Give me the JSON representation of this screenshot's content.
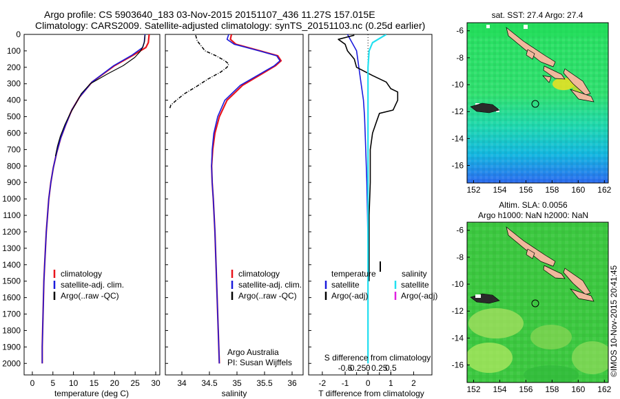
{
  "header": {
    "line1": "Argo profile: CS 5903640_183 03-Nov-2015 20151107_436 11.27S 157.015E",
    "line2": "Climatology: CARS2009. Satellite-adjusted climatology: synTS_20151103.nc (0.25d earlier)"
  },
  "colors": {
    "climatology": "#e8141c",
    "satellite": "#1a1adc",
    "argo": "#000000",
    "sat_salinity": "#22e0f0",
    "argo_adj_salinity": "#e020e0"
  },
  "footer": {
    "stamp": "©IMOS 10-Nov-2015 20:41:45"
  },
  "chart_data": [
    {
      "type": "line",
      "id": "temperature",
      "xlabel": "temperature (deg C)",
      "ylabel": "",
      "xlim": [
        -2,
        31
      ],
      "ylim": [
        2070,
        0
      ],
      "xticks": [
        "0",
        "5",
        "10",
        "15",
        "20",
        "25",
        "30"
      ],
      "yticks": [
        "0",
        "100",
        "200",
        "300",
        "400",
        "500",
        "600",
        "700",
        "800",
        "900",
        "1000",
        "1100",
        "1200",
        "1300",
        "1400",
        "1500",
        "1600",
        "1700",
        "1800",
        "1900",
        "2000"
      ],
      "legend": [
        "climatology",
        "satellite-adj. clim.",
        "Argo(..raw -QC)"
      ],
      "series": [
        {
          "name": "climatology",
          "color_key": "climatology",
          "width": 2.2,
          "x": [
            28.4,
            28.2,
            27.6,
            24.6,
            20.0,
            14.5,
            11.5,
            9.6,
            8.1,
            6.9,
            5.9,
            5.1,
            4.5,
            4.0,
            3.7,
            3.4,
            3.2,
            3.0,
            2.8,
            2.7,
            2.6,
            2.5,
            2.4,
            2.4
          ],
          "y": [
            0,
            50,
            80,
            125,
            190,
            290,
            380,
            460,
            550,
            630,
            720,
            810,
            900,
            1000,
            1100,
            1200,
            1300,
            1400,
            1500,
            1600,
            1700,
            1800,
            1900,
            2000
          ]
        },
        {
          "name": "satellite-adj. clim.",
          "color_key": "satellite",
          "width": 1.6,
          "x": [
            27.4,
            27.2,
            26.8,
            24.3,
            19.8,
            14.5,
            11.5,
            9.6,
            8.1,
            6.9,
            5.9,
            5.1,
            4.5,
            4.0,
            3.7,
            3.4,
            3.2,
            3.0,
            2.8,
            2.7,
            2.6,
            2.5,
            2.4,
            2.4
          ],
          "y": [
            0,
            50,
            80,
            125,
            190,
            290,
            380,
            460,
            550,
            630,
            720,
            810,
            900,
            1000,
            1100,
            1200,
            1300,
            1400,
            1500,
            1600,
            1700,
            1800,
            1900,
            2000
          ]
        },
        {
          "name": "Argo(..raw -QC)",
          "color_key": "argo",
          "width": 1.2,
          "x": [
            27.4,
            27.3,
            26.9,
            26.2,
            24.9,
            22.1,
            18.3,
            14.1,
            11.9,
            10.6,
            9.2,
            7.9,
            6.8,
            6.1,
            5.6
          ],
          "y": [
            5,
            40,
            75,
            105,
            140,
            190,
            240,
            300,
            360,
            420,
            480,
            550,
            620,
            680,
            740
          ]
        }
      ]
    },
    {
      "type": "line",
      "id": "salinity",
      "xlabel": "salinity",
      "xlim": [
        33.7,
        36.2
      ],
      "ylim": [
        2070,
        0
      ],
      "xticks": [
        "34",
        "34.5",
        "35",
        "35.5",
        "36"
      ],
      "legend": [
        "climatology",
        "satellite-adj. clim.",
        "Argo(..raw -QC)"
      ],
      "caption": [
        "Argo Australia",
        "PI: Susan Wijffels"
      ],
      "series": [
        {
          "name": "climatology",
          "color_key": "climatology",
          "width": 2.2,
          "x": [
            34.9,
            34.88,
            34.98,
            35.42,
            35.74,
            35.8,
            35.7,
            35.45,
            35.1,
            34.82,
            34.68,
            34.6,
            34.56,
            34.54,
            34.55,
            34.57,
            34.6,
            34.62,
            34.64,
            34.66,
            34.67,
            34.68
          ],
          "y": [
            0,
            30,
            60,
            100,
            130,
            160,
            190,
            240,
            310,
            400,
            500,
            600,
            700,
            800,
            900,
            1000,
            1200,
            1400,
            1600,
            1800,
            1900,
            2000
          ]
        },
        {
          "name": "satellite-adj. clim.",
          "color_key": "satellite",
          "width": 1.6,
          "x": [
            34.85,
            34.82,
            34.95,
            35.4,
            35.72,
            35.78,
            35.68,
            35.42,
            35.06,
            34.78,
            34.65,
            34.58,
            34.55,
            34.54,
            34.55,
            34.57,
            34.6,
            34.62,
            34.64,
            34.66,
            34.67,
            34.68
          ],
          "y": [
            0,
            30,
            60,
            100,
            130,
            160,
            190,
            240,
            310,
            400,
            500,
            600,
            700,
            800,
            900,
            1000,
            1200,
            1400,
            1600,
            1800,
            1900,
            2000
          ]
        },
        {
          "name": "Argo(..raw -QC)",
          "color_key": "argo",
          "width": 1.5,
          "dashed": true,
          "x": [
            34.25,
            34.28,
            34.35,
            34.42,
            34.62,
            34.78,
            34.85,
            34.82,
            34.7,
            34.48,
            34.25,
            34.05,
            33.9,
            33.8,
            33.78
          ],
          "y": [
            5,
            40,
            70,
            100,
            130,
            160,
            180,
            200,
            230,
            270,
            320,
            360,
            400,
            430,
            450
          ]
        }
      ]
    },
    {
      "type": "line",
      "id": "difference",
      "xlabel": "T difference from climatology",
      "xlabel_top": "S difference from climatology",
      "xlim": [
        -2.6,
        2.8
      ],
      "ylim": [
        2070,
        0
      ],
      "xticks": [
        "-2",
        "-1",
        "0",
        "1",
        "2"
      ],
      "xticks_top": [
        "-0.5",
        "-0.25",
        "0",
        "0.25",
        "0.5"
      ],
      "legend_left_title": "temperature",
      "legend_right_title": "salinity",
      "legend": [
        "satellite",
        "Argo(-adj)",
        "satellite",
        "Argo(-adj)"
      ],
      "series": [
        {
          "name": "T satellite",
          "color_key": "satellite",
          "width": 1.6,
          "x": [
            -0.9,
            -0.5,
            -0.4,
            -0.3,
            -0.2,
            -0.15,
            -0.1,
            -0.05,
            -0.02,
            0.0,
            0.0,
            0.0
          ],
          "y": [
            0,
            100,
            200,
            300,
            400,
            500,
            700,
            900,
            1100,
            1300,
            1600,
            2000
          ]
        },
        {
          "name": "T Argo(-adj)",
          "color_key": "argo",
          "width": 1.6,
          "x": [
            -0.6,
            -1.3,
            -1.0,
            -0.9,
            -0.6,
            -0.5,
            0.2,
            0.8,
            1.0,
            1.3,
            1.3,
            1.1,
            0.5,
            0.4,
            0.2,
            0.1,
            0.1,
            0.05,
            0.05,
            0.05
          ],
          "y": [
            5,
            30,
            60,
            100,
            150,
            200,
            250,
            290,
            330,
            350,
            400,
            460,
            480,
            520,
            600,
            700,
            900,
            1100,
            1300,
            1500
          ]
        },
        {
          "name": "S satellite",
          "color_key": "sat_salinity",
          "width": 2.2,
          "x": [
            0.8,
            0.2,
            0.05,
            0.0,
            0.0,
            0.0,
            0.0
          ],
          "y": [
            0,
            50,
            100,
            200,
            500,
            1000,
            2000
          ]
        }
      ]
    },
    {
      "type": "heatmap",
      "id": "sst-map",
      "title": "sat. SST: 27.4 Argo: 27.4",
      "xticks": [
        "152",
        "154",
        "156",
        "158",
        "160",
        "162"
      ],
      "yticks": [
        "-6",
        "-8",
        "-10",
        "-12",
        "-14",
        "-16"
      ],
      "marker": {
        "lon": 157.015,
        "lat": -11.27
      }
    },
    {
      "type": "heatmap",
      "id": "sla-map",
      "title": "Altim. SLA: 0.0056",
      "subtitle": "Argo h1000: NaN h2000: NaN",
      "xticks": [
        "152",
        "154",
        "156",
        "158",
        "160",
        "162"
      ],
      "yticks": [
        "-6",
        "-8",
        "-10",
        "-12",
        "-14",
        "-16"
      ],
      "marker": {
        "lon": 157.015,
        "lat": -11.27
      }
    }
  ]
}
